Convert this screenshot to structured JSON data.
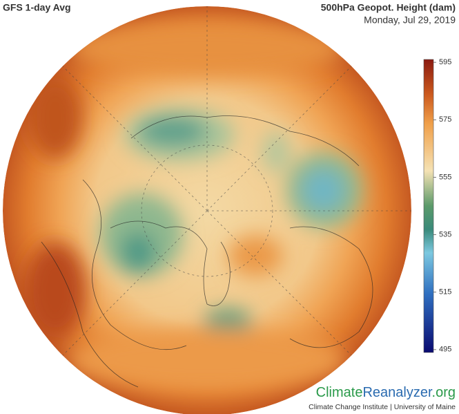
{
  "header": {
    "title": "GFS 1-day Avg",
    "variable": "500hPa Geopot. Height (dam)",
    "date": "Monday, Jul 29, 2019"
  },
  "colorbar": {
    "lim": [
      494,
      596
    ],
    "ticks": [
      595,
      575,
      555,
      535,
      515,
      495
    ]
  },
  "footer": {
    "logo": [
      "Climate",
      "Reanalyzer",
      ".org"
    ],
    "credit": "Climate Change Institute | University of Maine"
  }
}
